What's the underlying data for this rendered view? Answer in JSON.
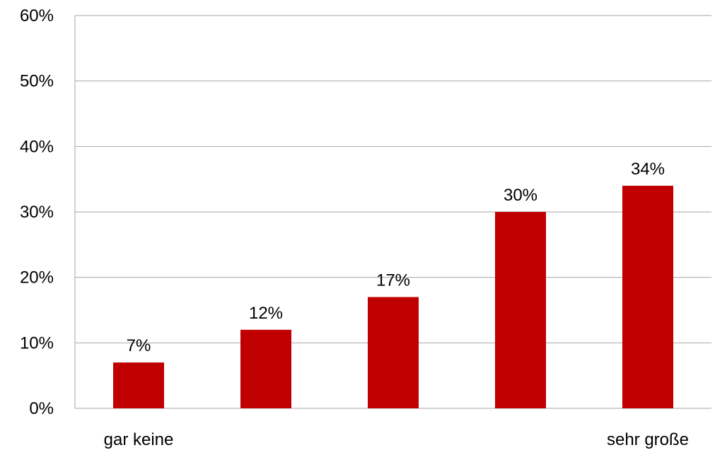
{
  "chart_data": {
    "type": "bar",
    "title": "",
    "xlabel": "",
    "ylabel": "",
    "categories": [
      "gar keine",
      "",
      "",
      "",
      "sehr große"
    ],
    "values": [
      7,
      12,
      17,
      30,
      34
    ],
    "data_labels": [
      "7%",
      "12%",
      "17%",
      "30%",
      "34%"
    ],
    "ylim": [
      0,
      60
    ],
    "y_ticks": [
      0,
      10,
      20,
      30,
      40,
      50,
      60
    ],
    "y_tick_labels": [
      "0%",
      "10%",
      "20%",
      "30%",
      "40%",
      "50%",
      "60%"
    ],
    "grid": true,
    "legend": "none",
    "bar_color": "#c00000",
    "gridline_color": "#a6a6a6"
  }
}
